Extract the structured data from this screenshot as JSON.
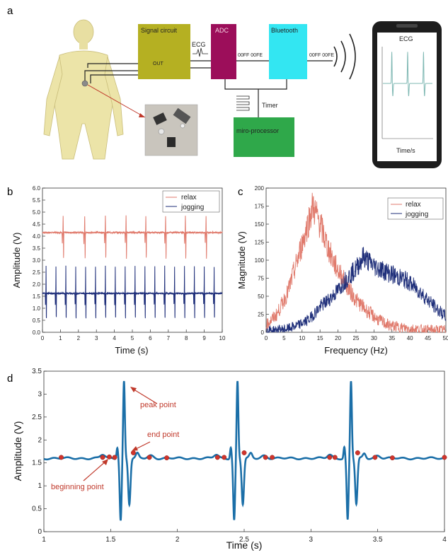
{
  "panel_labels": {
    "a": "a",
    "b": "b",
    "c": "c",
    "d": "d"
  },
  "diagram": {
    "signal_circuit": "Signal  circuit",
    "out_label": "OUT",
    "ecg_label": "ECG",
    "adc": "ADC",
    "bluetooth": "Bluetooth",
    "hex_adc": "00FF 00FE",
    "hex_bt": "00FF 00FE",
    "timer": "Timer",
    "processor": "miro-processor",
    "phone_title": "ECG",
    "phone_xlabel": "Time/s"
  },
  "colors": {
    "relax": "#e07a6c",
    "jogging": "#1f2f7a",
    "ecg_d": "#1b6fa8",
    "markers": "#d0342c",
    "signal_box": "#b5b022",
    "adc_box": "#9c0e5a",
    "bt_box": "#33e6f2",
    "proc_box": "#2fa84a"
  },
  "chart_data": [
    {
      "type": "line",
      "panel": "b",
      "xlabel": "Time (s)",
      "ylabel": "Amplitude (V)",
      "xlim": [
        0,
        10
      ],
      "ylim": [
        0,
        6.0
      ],
      "xticks": [
        "0",
        "1",
        "2",
        "3",
        "4",
        "5",
        "6",
        "7",
        "8",
        "9",
        "10"
      ],
      "yticks": [
        "0.0",
        "0.5",
        "1.0",
        "1.5",
        "2.0",
        "2.5",
        "3.0",
        "3.5",
        "4.0",
        "4.5",
        "5.0",
        "5.5",
        "6.0"
      ],
      "legend_position": "top-right",
      "series": [
        {
          "name": "relax",
          "baseline": 4.15,
          "peak": 4.85,
          "trough": 3.0,
          "beat_times": [
            1.15,
            2.35,
            3.5,
            4.65,
            5.75,
            6.85,
            7.95,
            9.1
          ]
        },
        {
          "name": "jogging",
          "baseline": 1.62,
          "peak": 2.75,
          "trough": 0.35,
          "beat_times": [
            0.2,
            0.75,
            1.3,
            1.85,
            2.4,
            2.95,
            3.5,
            4.05,
            4.6,
            5.15,
            5.7,
            6.25,
            6.8,
            7.35,
            7.9,
            8.45,
            9.0,
            9.55
          ]
        }
      ]
    },
    {
      "type": "line",
      "panel": "c",
      "xlabel": "Frequency (Hz)",
      "ylabel": "Magnitude (V)",
      "xlim": [
        0,
        50
      ],
      "ylim": [
        0,
        200
      ],
      "xticks": [
        "0",
        "5",
        "10",
        "15",
        "20",
        "25",
        "30",
        "35",
        "40",
        "45",
        "50"
      ],
      "yticks": [
        "0",
        "25",
        "50",
        "75",
        "100",
        "125",
        "150",
        "175",
        "200"
      ],
      "legend_position": "top-right",
      "series": [
        {
          "name": "relax",
          "x": [
            0,
            3,
            6,
            9,
            11,
            13,
            15,
            17,
            19,
            21,
            23,
            25,
            28,
            31,
            34,
            37,
            40,
            43,
            46,
            50
          ],
          "y": [
            10,
            25,
            55,
            105,
            140,
            175,
            150,
            120,
            95,
            78,
            60,
            45,
            30,
            18,
            10,
            7,
            5,
            4,
            3,
            3
          ]
        },
        {
          "name": "jogging",
          "x": [
            0,
            3,
            6,
            9,
            12,
            15,
            18,
            20,
            22,
            25,
            27,
            30,
            33,
            36,
            39,
            42,
            45,
            48,
            50
          ],
          "y": [
            3,
            3,
            5,
            10,
            18,
            35,
            48,
            58,
            72,
            88,
            105,
            92,
            85,
            78,
            72,
            60,
            45,
            30,
            22
          ]
        }
      ]
    },
    {
      "type": "line",
      "panel": "d",
      "xlabel": "Time (s)",
      "ylabel": "Amplitude (V)",
      "xlim": [
        1,
        4
      ],
      "ylim": [
        0,
        3.5
      ],
      "xticks": [
        "1",
        "1.5",
        "2",
        "2.5",
        "3",
        "3.5",
        "4"
      ],
      "yticks": [
        "0",
        "0.5",
        "1",
        "1.5",
        "2",
        "2.5",
        "3",
        "3.5"
      ],
      "baseline": 1.6,
      "r_peaks": [
        {
          "t": 1.6,
          "v": 3.28
        },
        {
          "t": 2.45,
          "v": 3.28
        },
        {
          "t": 3.3,
          "v": 3.28
        }
      ],
      "marker_points": [
        {
          "t": 1.13,
          "v": 1.62
        },
        {
          "t": 1.44,
          "v": 1.62
        },
        {
          "t": 1.49,
          "v": 1.63
        },
        {
          "t": 1.53,
          "v": 1.62
        },
        {
          "t": 1.67,
          "v": 1.72
        },
        {
          "t": 1.79,
          "v": 1.62
        },
        {
          "t": 1.92,
          "v": 1.61
        },
        {
          "t": 2.3,
          "v": 1.62
        },
        {
          "t": 2.35,
          "v": 1.62
        },
        {
          "t": 2.5,
          "v": 1.72
        },
        {
          "t": 2.66,
          "v": 1.62
        },
        {
          "t": 2.71,
          "v": 1.62
        },
        {
          "t": 3.14,
          "v": 1.62
        },
        {
          "t": 3.18,
          "v": 1.62
        },
        {
          "t": 3.35,
          "v": 1.72
        },
        {
          "t": 3.48,
          "v": 1.62
        },
        {
          "t": 3.61,
          "v": 1.61
        },
        {
          "t": 4.0,
          "v": 1.62
        }
      ],
      "annotations": {
        "peak": "peak point",
        "end": "end point",
        "beginning": "beginning point"
      }
    }
  ]
}
